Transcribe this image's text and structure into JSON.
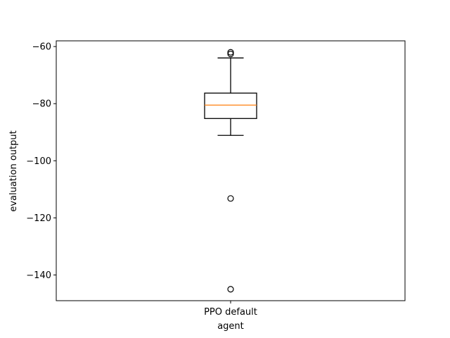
{
  "chart_data": {
    "type": "box",
    "title": "",
    "xlabel": "agent",
    "ylabel": "evaluation output",
    "categories": [
      "PPO default"
    ],
    "ylim": [
      -149,
      -58
    ],
    "yticks": [
      -60,
      -80,
      -100,
      -120,
      -140
    ],
    "ytick_labels": [
      "−60",
      "−80",
      "−100",
      "−120",
      "−140"
    ],
    "grid": false,
    "boxes": [
      {
        "name": "PPO default",
        "whisker_high": -64,
        "q3": -76.3,
        "median": -80.5,
        "q1": -85.2,
        "whisker_low": -91.1,
        "outliers": [
          -62,
          -62.6,
          -113.2,
          -145
        ]
      }
    ],
    "colors": {
      "box": "#000000",
      "median": "#ff7f0e",
      "frame": "#000000"
    }
  }
}
